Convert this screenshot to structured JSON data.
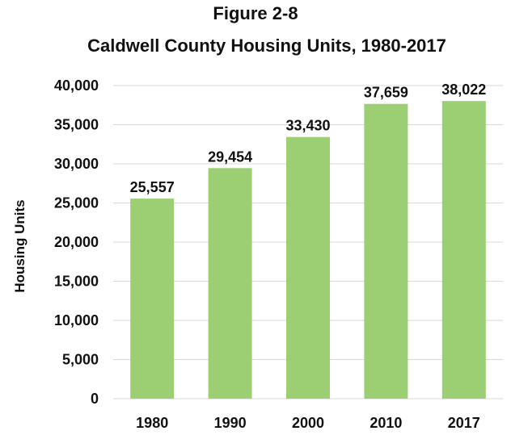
{
  "figure_number": "Figure 2-8",
  "chart_data": {
    "type": "bar",
    "title": "Caldwell County Housing Units, 1980-2017",
    "xlabel": "",
    "ylabel": "Housing Units",
    "categories": [
      "1980",
      "1990",
      "2000",
      "2010",
      "2017"
    ],
    "values": [
      25557,
      29454,
      33430,
      37659,
      38022
    ],
    "data_labels": [
      "25,557",
      "29,454",
      "33,430",
      "37,659",
      "38,022"
    ],
    "ylim": [
      0,
      40000
    ],
    "yticks": [
      0,
      5000,
      10000,
      15000,
      20000,
      25000,
      30000,
      35000,
      40000
    ],
    "ytick_labels": [
      "0",
      "5,000",
      "10,000",
      "15,000",
      "20,000",
      "25,000",
      "30,000",
      "35,000",
      "40,000"
    ],
    "grid": true,
    "bar_color": "#9ccf74",
    "grid_color": "#d9d9d9"
  }
}
